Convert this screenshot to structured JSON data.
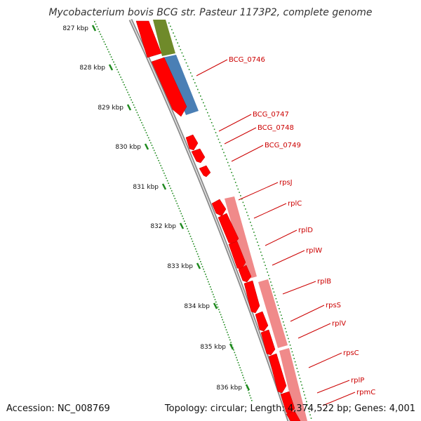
{
  "title": "Mycobacterium bovis BCG str. Pasteur 1173P2, complete genome",
  "accession": "Accession: NC_008769",
  "topology": "Topology: circular; Length: 4,374,522 bp; Genes: 4,001",
  "colors": {
    "backbone": "#8a8a8a",
    "gene": "#ff0000",
    "gene_dark": "#c40000",
    "operon": "#f08a8a",
    "olive": "#6f8a2a",
    "blue": "#4a7fb5",
    "scale": "#1f8a1f",
    "label": "#cc0000"
  },
  "scale_ticks": [
    "827 kbp",
    "828 kbp",
    "829 kbp",
    "830 kbp",
    "831 kbp",
    "832 kbp",
    "833 kbp",
    "834 kbp",
    "835 kbp",
    "836 kbp"
  ],
  "genes": [
    "BCG_0746",
    "BCG_0747",
    "BCG_0748",
    "BCG_0749",
    "rpsJ",
    "rplC",
    "rplD",
    "rplW",
    "rplB",
    "rpsS",
    "rplV",
    "rpsC",
    "rplP",
    "rpmC"
  ]
}
